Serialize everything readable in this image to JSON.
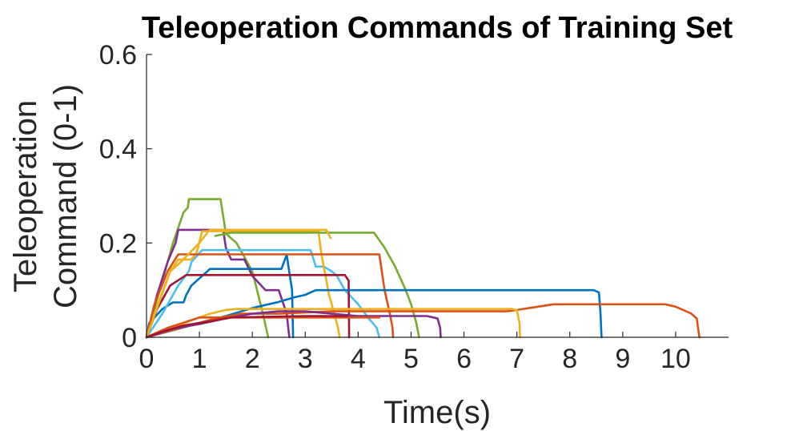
{
  "chart_data": {
    "type": "line",
    "title": "Teleoperation Commands of Training Set",
    "xlabel": "Time(s)",
    "ylabel_line1": "Teleoperation",
    "ylabel_line2": "Command (0-1)",
    "xlim": [
      0,
      11
    ],
    "ylim": [
      0,
      0.6
    ],
    "x_ticks": [
      0,
      1,
      2,
      3,
      4,
      5,
      6,
      7,
      8,
      9,
      10
    ],
    "x_tick_labels": [
      "0",
      "1",
      "2",
      "3",
      "4",
      "5",
      "6",
      "7",
      "8",
      "9",
      "10"
    ],
    "y_ticks": [
      0,
      0.2,
      0.4,
      0.6
    ],
    "y_tick_labels": [
      "0",
      "0.2",
      "0.4",
      "0.6"
    ],
    "grid": false,
    "series": [
      {
        "color": "#77AC30",
        "x": [
          0,
          0.25,
          0.5,
          0.7,
          0.78,
          0.8,
          1.4,
          1.5,
          1.7,
          2.0,
          2.2,
          2.3
        ],
        "y": [
          0,
          0.1,
          0.2,
          0.265,
          0.275,
          0.293,
          0.293,
          0.22,
          0.2,
          0.14,
          0.05,
          0
        ]
      },
      {
        "color": "#7E2F8E",
        "x": [
          0,
          0.2,
          0.4,
          0.55,
          0.6,
          1.45,
          1.5,
          1.6,
          1.85,
          2.0,
          2.25,
          2.5,
          2.65,
          2.7
        ],
        "y": [
          0,
          0.09,
          0.16,
          0.2,
          0.228,
          0.228,
          0.19,
          0.165,
          0.165,
          0.13,
          0.1,
          0.1,
          0.05,
          0
        ]
      },
      {
        "color": "#0072BD",
        "x": [
          0,
          0.05,
          0.3,
          0.5,
          0.6,
          0.7,
          0.75,
          0.85,
          1.2,
          2.55,
          2.65,
          2.75,
          2.77
        ],
        "y": [
          0,
          0.03,
          0.06,
          0.074,
          0.074,
          0.074,
          0.09,
          0.11,
          0.145,
          0.145,
          0.175,
          0.1,
          0
        ]
      },
      {
        "color": "#4DBEEE",
        "x": [
          0,
          0.3,
          0.6,
          0.8,
          0.85,
          1.05,
          3.1,
          3.2,
          3.35,
          3.5,
          3.6,
          3.75,
          4.0,
          4.2,
          4.35,
          4.4
        ],
        "y": [
          0,
          0.05,
          0.11,
          0.14,
          0.16,
          0.185,
          0.185,
          0.15,
          0.15,
          0.14,
          0.13,
          0.1,
          0.07,
          0.04,
          0.02,
          0
        ]
      },
      {
        "color": "#EDB120",
        "x": [
          0,
          0.15,
          0.45,
          0.6,
          0.85,
          0.95,
          1.05,
          3.25,
          3.3,
          3.45,
          3.55,
          3.62,
          3.65
        ],
        "y": [
          0,
          0.05,
          0.14,
          0.165,
          0.165,
          0.18,
          0.225,
          0.225,
          0.18,
          0.09,
          0.05,
          0.02,
          0
        ]
      },
      {
        "color": "#A2142F",
        "x": [
          0,
          0.2,
          0.45,
          0.75,
          3.75,
          3.82,
          3.83
        ],
        "y": [
          0,
          0.06,
          0.11,
          0.132,
          0.132,
          0.12,
          0
        ]
      },
      {
        "color": "#D95319",
        "x": [
          0,
          0.15,
          0.4,
          0.6,
          4.4,
          4.5,
          4.6,
          4.65,
          4.66
        ],
        "y": [
          0,
          0.07,
          0.14,
          0.176,
          0.176,
          0.1,
          0.05,
          0.02,
          0
        ]
      },
      {
        "color": "#77AC30",
        "x": [
          1.3,
          1.6,
          4.3,
          4.5,
          4.7,
          4.9,
          5.0,
          5.1,
          5.15
        ],
        "y": [
          0.215,
          0.222,
          0.222,
          0.19,
          0.15,
          0.1,
          0.07,
          0.03,
          0
        ]
      },
      {
        "color": "#EDB120",
        "x": [
          0,
          0.45,
          0.65,
          1.0,
          1.15,
          1.2,
          3.4,
          3.48
        ],
        "y": [
          0,
          0.14,
          0.16,
          0.2,
          0.222,
          0.228,
          0.228,
          0.21
        ]
      },
      {
        "color": "#0072BD",
        "x": [
          0,
          0.5,
          1.0,
          1.5,
          2.0,
          2.5,
          2.8,
          3.0,
          3.2,
          8.45,
          8.55,
          8.58,
          8.6
        ],
        "y": [
          0,
          0.015,
          0.03,
          0.045,
          0.062,
          0.075,
          0.085,
          0.09,
          0.1,
          0.1,
          0.095,
          0.05,
          0
        ]
      },
      {
        "color": "#D95319",
        "x": [
          0,
          1.3,
          1.8,
          2.5,
          3.5,
          6.8,
          7.0,
          7.4,
          7.7,
          9.8,
          10.0,
          10.3,
          10.4,
          10.45
        ],
        "y": [
          0,
          0.04,
          0.05,
          0.05,
          0.055,
          0.055,
          0.058,
          0.065,
          0.07,
          0.07,
          0.065,
          0.05,
          0.04,
          0
        ]
      },
      {
        "color": "#EDB120",
        "x": [
          0,
          0.3,
          0.6,
          0.9,
          1.2,
          1.5,
          1.7,
          6.9,
          7.0,
          7.05,
          7.06
        ],
        "y": [
          0,
          0.015,
          0.025,
          0.038,
          0.05,
          0.058,
          0.06,
          0.06,
          0.058,
          0.03,
          0
        ]
      },
      {
        "color": "#7E2F8E",
        "x": [
          0,
          0.5,
          1.0,
          1.5,
          2.0,
          2.5,
          3.0,
          3.5,
          4.0,
          4.4,
          5.3,
          5.5,
          5.55,
          5.56
        ],
        "y": [
          0,
          0.018,
          0.028,
          0.04,
          0.05,
          0.055,
          0.055,
          0.05,
          0.045,
          0.045,
          0.045,
          0.04,
          0.02,
          0
        ]
      },
      {
        "color": "#D95319",
        "x": [
          0,
          0.4,
          1.0,
          4.4
        ],
        "y": [
          0,
          0.02,
          0.042,
          0.042
        ]
      },
      {
        "color": "#A2142F",
        "x": [
          0,
          0.3,
          0.7,
          1.2,
          1.6,
          3.0,
          3.8
        ],
        "y": [
          0,
          0.012,
          0.025,
          0.034,
          0.042,
          0.045,
          0.045
        ]
      }
    ]
  }
}
